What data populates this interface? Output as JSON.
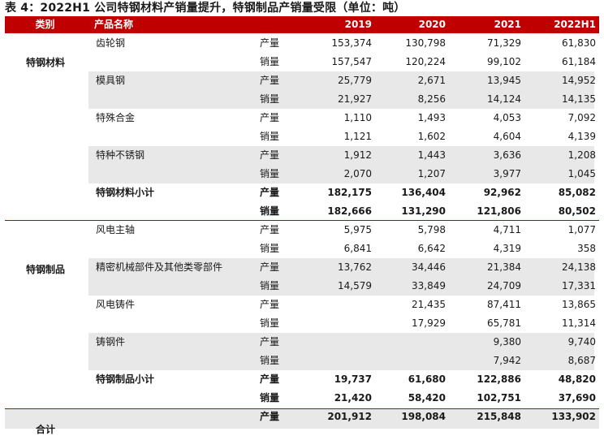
{
  "title": "表 4：2022H1 公司特钢材料产销量提升，特钢制品产销量受限（单位：吨）",
  "header": {
    "category": "类别",
    "product": "产品名称",
    "years": [
      "2019",
      "2020",
      "2021",
      "2022H1"
    ]
  },
  "categories": [
    "特钢材料",
    "特钢制品",
    "合计"
  ],
  "rows": [
    {
      "product": "齿轮钢",
      "metric": "产量",
      "values": [
        "153,374",
        "130,798",
        "71,329",
        "61,830"
      ]
    },
    {
      "product": "",
      "metric": "销量",
      "values": [
        "157,547",
        "120,224",
        "99,102",
        "61,184"
      ]
    },
    {
      "product": "模具钢",
      "metric": "产量",
      "values": [
        "25,779",
        "2,671",
        "13,945",
        "14,952"
      ]
    },
    {
      "product": "",
      "metric": "销量",
      "values": [
        "21,927",
        "8,256",
        "14,124",
        "14,135"
      ]
    },
    {
      "product": "特殊合金",
      "metric": "产量",
      "values": [
        "1,110",
        "1,493",
        "4,053",
        "7,092"
      ]
    },
    {
      "product": "",
      "metric": "销量",
      "values": [
        "1,121",
        "1,602",
        "4,604",
        "4,139"
      ]
    },
    {
      "product": "特种不锈钢",
      "metric": "产量",
      "values": [
        "1,912",
        "1,443",
        "3,636",
        "1,208"
      ]
    },
    {
      "product": "",
      "metric": "销量",
      "values": [
        "2,070",
        "1,207",
        "3,977",
        "1,045"
      ]
    },
    {
      "product": "特钢材料小计",
      "metric": "产量",
      "values": [
        "182,175",
        "136,404",
        "92,962",
        "85,082"
      ]
    },
    {
      "product": "",
      "metric": "销量",
      "values": [
        "182,666",
        "131,290",
        "121,806",
        "80,502"
      ]
    },
    {
      "product": "风电主轴",
      "metric": "产量",
      "values": [
        "5,975",
        "5,798",
        "4,711",
        "1,077"
      ]
    },
    {
      "product": "",
      "metric": "销量",
      "values": [
        "6,841",
        "6,642",
        "4,319",
        "358"
      ]
    },
    {
      "product": "精密机械部件及其他类零部件",
      "metric": "产量",
      "values": [
        "13,762",
        "34,446",
        "21,384",
        "24,138"
      ]
    },
    {
      "product": "",
      "metric": "销量",
      "values": [
        "14,579",
        "33,849",
        "24,709",
        "17,331"
      ]
    },
    {
      "product": "风电铸件",
      "metric": "产量",
      "values": [
        "",
        "21,435",
        "87,411",
        "13,865"
      ]
    },
    {
      "product": "",
      "metric": "销量",
      "values": [
        "",
        "17,929",
        "65,781",
        "11,314"
      ]
    },
    {
      "product": "铸钢件",
      "metric": "产量",
      "values": [
        "",
        "",
        "9,380",
        "9,740"
      ]
    },
    {
      "product": "",
      "metric": "销量",
      "values": [
        "",
        "",
        "7,942",
        "8,687"
      ]
    },
    {
      "product": "特钢制品小计",
      "metric": "产量",
      "values": [
        "19,737",
        "61,680",
        "122,886",
        "48,820"
      ]
    },
    {
      "product": "",
      "metric": "销量",
      "values": [
        "21,420",
        "58,420",
        "102,751",
        "37,690"
      ]
    },
    {
      "product": "",
      "metric": "产量",
      "values": [
        "201,912",
        "198,084",
        "215,848",
        "133,902"
      ]
    }
  ],
  "colors": {
    "header_bg": "#c00000",
    "band_bg": "#e8e8e8"
  }
}
